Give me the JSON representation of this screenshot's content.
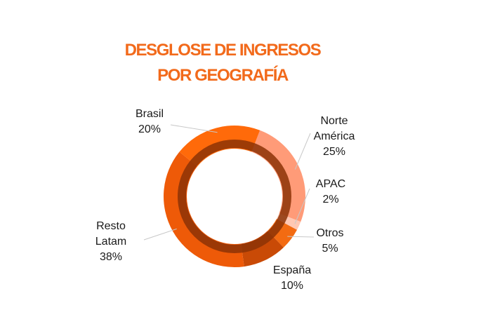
{
  "title_lines": [
    "DESGLOSE DE INGRESOS",
    "POR GEOGRAFÍA"
  ],
  "chart_data": {
    "type": "pie",
    "variant": "doughnut",
    "title": "DESGLOSE DE INGRESOS POR GEOGRAFÍA",
    "slices": [
      {
        "label": "Norte América",
        "label_lines": [
          "Norte",
          "América"
        ],
        "value": 25,
        "value_label": "25%",
        "color": "#ff9b78"
      },
      {
        "label": "APAC",
        "label_lines": [
          "APAC"
        ],
        "value": 2,
        "value_label": "2%",
        "color": "#ffc8b3"
      },
      {
        "label": "Otros",
        "label_lines": [
          "Otros"
        ],
        "value": 5,
        "value_label": "5%",
        "color": "#f36b12"
      },
      {
        "label": "España",
        "label_lines": [
          "España"
        ],
        "value": 10,
        "value_label": "10%",
        "color": "#c94a06"
      },
      {
        "label": "Resto Latam",
        "label_lines": [
          "Resto",
          "Latam"
        ],
        "value": 38,
        "value_label": "38%",
        "color": "#ee5a08"
      },
      {
        "label": "Brasil",
        "label_lines": [
          "Brasil"
        ],
        "value": 20,
        "value_label": "20%",
        "color": "#ff6a0a"
      }
    ],
    "inner_ring_color": "#8c3206"
  }
}
